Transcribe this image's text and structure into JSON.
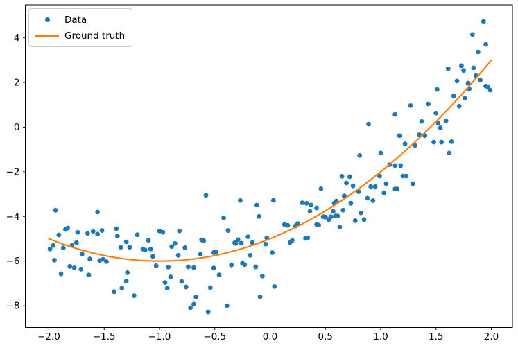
{
  "figure": {
    "background": "#ffffff"
  },
  "chart_data": {
    "type": "scatter",
    "title": "",
    "xlabel": "",
    "ylabel": "",
    "grid": false,
    "xlim": [
      -2.23,
      2.19
    ],
    "ylim": [
      -8.99,
      5.56
    ],
    "x_ticks": {
      "values": [
        -2.0,
        -1.5,
        -1.0,
        -0.5,
        0.0,
        0.5,
        1.0,
        1.5,
        2.0
      ],
      "labels": [
        "−2.0",
        "−1.5",
        "−1.0",
        "−0.5",
        "0.0",
        "0.5",
        "1.0",
        "1.5",
        "2.0"
      ]
    },
    "y_ticks": {
      "values": [
        4,
        2,
        0,
        -2,
        -4,
        -6,
        -8
      ],
      "labels": [
        "4",
        "2",
        "0",
        "−2",
        "−4",
        "−6",
        "−8"
      ]
    },
    "legend": {
      "position": "upper left",
      "entries": [
        {
          "label": "Data",
          "type": "marker",
          "color": "#1f77b4"
        },
        {
          "label": "Ground truth",
          "type": "line",
          "color": "#ff7f0e"
        }
      ]
    },
    "series": [
      {
        "name": "Data",
        "kind": "scatter",
        "color": "#1f77b4",
        "marker": "circle",
        "points": [
          [
            -1.99,
            -5.46
          ],
          [
            -1.96,
            -5.3
          ],
          [
            -1.95,
            -5.96
          ],
          [
            -1.94,
            -3.72
          ],
          [
            -1.91,
            -4.83
          ],
          [
            -1.89,
            -6.57
          ],
          [
            -1.87,
            -5.41
          ],
          [
            -1.85,
            -4.58
          ],
          [
            -1.83,
            -4.52
          ],
          [
            -1.81,
            -6.24
          ],
          [
            -1.79,
            -5.3
          ],
          [
            -1.77,
            -6.3
          ],
          [
            -1.75,
            -5.17
          ],
          [
            -1.74,
            -4.71
          ],
          [
            -1.71,
            -6.36
          ],
          [
            -1.7,
            -5.69
          ],
          [
            -1.65,
            -4.76
          ],
          [
            -1.64,
            -6.62
          ],
          [
            -1.63,
            -5.9
          ],
          [
            -1.6,
            -4.67
          ],
          [
            -1.56,
            -3.8
          ],
          [
            -1.56,
            -4.79
          ],
          [
            -1.54,
            -5.97
          ],
          [
            -1.52,
            -4.63
          ],
          [
            -1.51,
            -5.92
          ],
          [
            -1.48,
            -6.02
          ],
          [
            -1.41,
            -7.37
          ],
          [
            -1.39,
            -4.55
          ],
          [
            -1.38,
            -4.88
          ],
          [
            -1.35,
            -5.38
          ],
          [
            -1.34,
            -7.21
          ],
          [
            -1.3,
            -5.14
          ],
          [
            -1.3,
            -6.9
          ],
          [
            -1.29,
            -6.52
          ],
          [
            -1.27,
            -5.38
          ],
          [
            -1.23,
            -7.55
          ],
          [
            -1.2,
            -4.82
          ],
          [
            -1.15,
            -5.46
          ],
          [
            -1.13,
            -5.5
          ],
          [
            -1.1,
            -5.07
          ],
          [
            -1.08,
            -5.46
          ],
          [
            -1.06,
            -5.79
          ],
          [
            -1.03,
            -6.21
          ],
          [
            -1.0,
            -4.65
          ],
          [
            -0.97,
            -4.71
          ],
          [
            -0.95,
            -6.96
          ],
          [
            -0.93,
            -7.21
          ],
          [
            -0.92,
            -6.27
          ],
          [
            -0.9,
            -6.71
          ],
          [
            -0.89,
            -5.35
          ],
          [
            -0.86,
            -5.21
          ],
          [
            -0.83,
            -5.74
          ],
          [
            -0.82,
            -4.65
          ],
          [
            -0.8,
            -6.91
          ],
          [
            -0.77,
            -5.4
          ],
          [
            -0.76,
            -7.16
          ],
          [
            -0.74,
            -6.26
          ],
          [
            -0.72,
            -8.09
          ],
          [
            -0.69,
            -6.29
          ],
          [
            -0.69,
            -7.93
          ],
          [
            -0.67,
            -7.6
          ],
          [
            -0.63,
            -5.69
          ],
          [
            -0.62,
            -5.05
          ],
          [
            -0.6,
            -5.09
          ],
          [
            -0.58,
            -3.05
          ],
          [
            -0.56,
            -8.28
          ],
          [
            -0.54,
            -7.19
          ],
          [
            -0.51,
            -5.62
          ],
          [
            -0.51,
            -6.31
          ],
          [
            -0.49,
            -5.58
          ],
          [
            -0.46,
            -6.62
          ],
          [
            -0.42,
            -4.06
          ],
          [
            -0.39,
            -8.0
          ],
          [
            -0.38,
            -4.63
          ],
          [
            -0.35,
            -6.17
          ],
          [
            -0.32,
            -5.18
          ],
          [
            -0.31,
            -5.21
          ],
          [
            -0.29,
            -5.04
          ],
          [
            -0.27,
            -3.28
          ],
          [
            -0.26,
            -5.2
          ],
          [
            -0.25,
            -6.1
          ],
          [
            -0.23,
            -6.16
          ],
          [
            -0.2,
            -4.91
          ],
          [
            -0.18,
            -5.74
          ],
          [
            -0.16,
            -5.17
          ],
          [
            -0.13,
            -6.26
          ],
          [
            -0.12,
            -3.49
          ],
          [
            -0.1,
            -4.0
          ],
          [
            -0.09,
            -7.6
          ],
          [
            -0.07,
            -6.67
          ],
          [
            -0.04,
            -5.24
          ],
          [
            -0.03,
            -4.96
          ],
          [
            0.02,
            -5.62
          ],
          [
            0.03,
            -3.28
          ],
          [
            0.04,
            -7.14
          ],
          [
            0.13,
            -4.36
          ],
          [
            0.16,
            -4.4
          ],
          [
            0.18,
            -5.17
          ],
          [
            0.2,
            -5.07
          ],
          [
            0.23,
            -4.43
          ],
          [
            0.25,
            -4.32
          ],
          [
            0.29,
            -3.39
          ],
          [
            0.32,
            -4.98
          ],
          [
            0.33,
            -3.41
          ],
          [
            0.34,
            -4.96
          ],
          [
            0.36,
            -3.77
          ],
          [
            0.37,
            -3.49
          ],
          [
            0.42,
            -3.62
          ],
          [
            0.42,
            -4.36
          ],
          [
            0.44,
            -4.39
          ],
          [
            0.46,
            -2.76
          ],
          [
            0.48,
            -4.01
          ],
          [
            0.5,
            -4.03
          ],
          [
            0.53,
            -4.14
          ],
          [
            0.55,
            -4.01
          ],
          [
            0.57,
            -3.77
          ],
          [
            0.58,
            -3.41
          ],
          [
            0.59,
            -3.98
          ],
          [
            0.6,
            -3.31
          ],
          [
            0.61,
            -3.98
          ],
          [
            0.63,
            -4.48
          ],
          [
            0.65,
            -2.2
          ],
          [
            0.66,
            -3.72
          ],
          [
            0.67,
            -3.08
          ],
          [
            0.69,
            -2.5
          ],
          [
            0.72,
            -2.22
          ],
          [
            0.73,
            -3.41
          ],
          [
            0.75,
            -2.63
          ],
          [
            0.77,
            -4.19
          ],
          [
            0.8,
            -2.89
          ],
          [
            0.81,
            -1.27
          ],
          [
            0.82,
            -3.84
          ],
          [
            0.85,
            -4.14
          ],
          [
            0.88,
            -3.18
          ],
          [
            0.89,
            0.14
          ],
          [
            0.91,
            -2.66
          ],
          [
            0.93,
            -3.29
          ],
          [
            0.95,
            -2.66
          ],
          [
            0.99,
            -2.19
          ],
          [
            1.0,
            -1.16
          ],
          [
            1.03,
            -2.94
          ],
          [
            1.05,
            -2.53
          ],
          [
            1.08,
            -1.68
          ],
          [
            1.13,
            -2.77
          ],
          [
            1.13,
            0.57
          ],
          [
            1.13,
            -1.72
          ],
          [
            1.15,
            -2.77
          ],
          [
            1.17,
            -0.38
          ],
          [
            1.18,
            -1.72
          ],
          [
            1.2,
            -2.19
          ],
          [
            1.22,
            -0.75
          ],
          [
            1.23,
            -2.19
          ],
          [
            1.27,
            0.97
          ],
          [
            1.29,
            -2.53
          ],
          [
            1.31,
            -0.82
          ],
          [
            1.35,
            -0.34
          ],
          [
            1.37,
            0.26
          ],
          [
            1.4,
            -0.38
          ],
          [
            1.43,
            1.04
          ],
          [
            1.48,
            -0.67
          ],
          [
            1.5,
            0.63
          ],
          [
            1.51,
            1.69
          ],
          [
            1.52,
            0.18
          ],
          [
            1.54,
            -0.03
          ],
          [
            1.55,
            -0.67
          ],
          [
            1.59,
            0.29
          ],
          [
            1.61,
            2.62
          ],
          [
            1.62,
            -1.16
          ],
          [
            1.64,
            -0.65
          ],
          [
            1.66,
            1.4
          ],
          [
            1.69,
            2.07
          ],
          [
            1.71,
            0.94
          ],
          [
            1.73,
            2.75
          ],
          [
            1.75,
            2.54
          ],
          [
            1.76,
            1.3
          ],
          [
            1.79,
            1.97
          ],
          [
            1.8,
            1.71
          ],
          [
            1.83,
            4.15
          ],
          [
            1.84,
            2.66
          ],
          [
            1.86,
            2.31
          ],
          [
            1.88,
            3.37
          ],
          [
            1.9,
            2.11
          ],
          [
            1.93,
            4.74
          ],
          [
            1.95,
            3.71
          ],
          [
            1.95,
            1.84
          ],
          [
            1.97,
            1.8
          ],
          [
            1.99,
            1.66
          ]
        ]
      },
      {
        "name": "Ground truth",
        "kind": "line",
        "color": "#ff7f0e",
        "formula": "y = x^2 + 2x - 5",
        "coefficients": [
          1,
          2,
          -5
        ],
        "x_range": [
          -2,
          2
        ],
        "endpoints": [
          [
            -2,
            -5
          ],
          [
            -1,
            -6
          ],
          [
            0,
            -5
          ],
          [
            1,
            -2
          ],
          [
            2,
            3
          ]
        ]
      }
    ]
  }
}
